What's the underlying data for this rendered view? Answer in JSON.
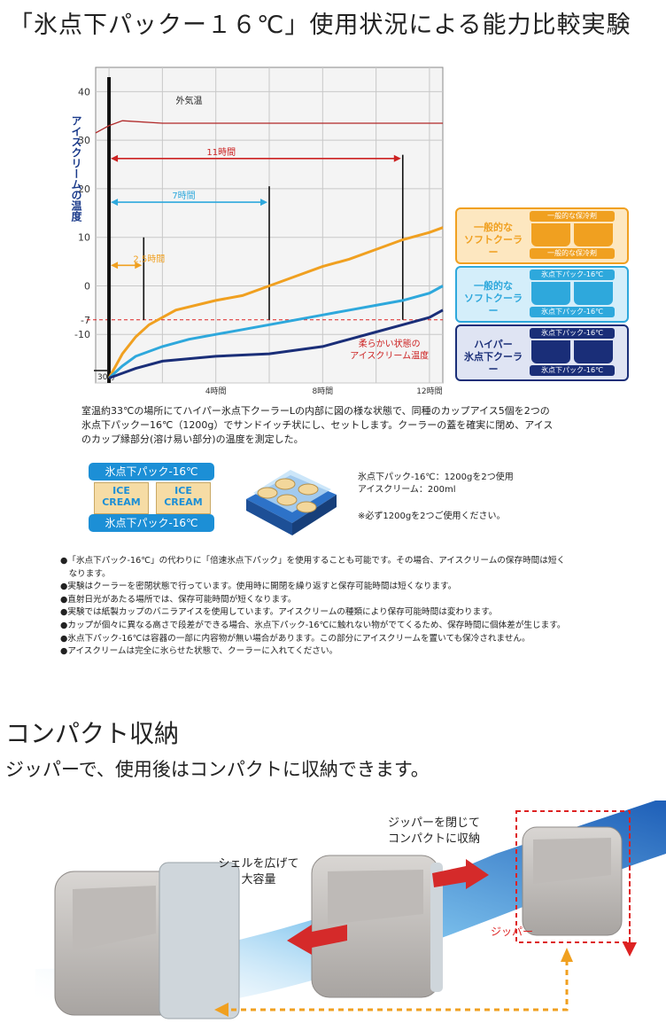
{
  "title": "「氷点下パックー１６℃」使用状況による能力比較実験",
  "chart_data": {
    "type": "line",
    "title": "",
    "ylabel": "アイスクリームの温度",
    "ylim": [
      -20,
      45
    ],
    "xlim": [
      -0.5,
      12.5
    ],
    "yticks": [
      40,
      30,
      20,
      10,
      0,
      -7,
      -10
    ],
    "ytick_labels": [
      "40",
      "30",
      "20",
      "10",
      "0",
      "-7",
      "-10"
    ],
    "xticks": [
      4,
      8,
      12
    ],
    "xtick_labels": [
      "4時間",
      "8時間",
      "12時間"
    ],
    "start_label": "30分",
    "grid": true,
    "series": [
      {
        "name": "外気温",
        "color": "#b02828",
        "x": [
          -0.5,
          0,
          0.5,
          2,
          4,
          8,
          12.5
        ],
        "y": [
          31.5,
          33,
          34,
          33.5,
          33.5,
          33.5,
          33.5
        ]
      },
      {
        "name": "一般的なソフトクーラー + 一般的な保冷剤",
        "color": "#f0a020",
        "x": [
          0,
          0.5,
          1,
          1.5,
          2.5,
          4,
          5,
          6,
          7,
          8,
          9,
          10,
          11,
          12,
          12.5
        ],
        "y": [
          -19,
          -14,
          -10.5,
          -8,
          -5,
          -3,
          -2,
          0,
          2,
          4,
          5.5,
          7.5,
          9.5,
          11,
          12
        ]
      },
      {
        "name": "一般的なソフトクーラー + 氷点下パック-16℃",
        "color": "#2ea8dc",
        "x": [
          0,
          0.5,
          1,
          2,
          3,
          4,
          5,
          6,
          7,
          8,
          9,
          10,
          11,
          12,
          12.5
        ],
        "y": [
          -19,
          -16.5,
          -14.5,
          -12.5,
          -11,
          -10,
          -9,
          -8,
          -7,
          -6,
          -5,
          -4,
          -3,
          -1.5,
          0
        ]
      },
      {
        "name": "ハイパー氷点下クーラー + 氷点下パック-16℃",
        "color": "#1a2e78",
        "x": [
          0,
          0.5,
          1,
          2,
          4,
          6,
          8,
          9,
          10,
          11,
          12,
          12.5
        ],
        "y": [
          -19,
          -18,
          -17,
          -15.5,
          -14.5,
          -14,
          -12.5,
          -11,
          -9.5,
          -8,
          -6.5,
          -5
        ]
      }
    ],
    "annotations": [
      {
        "text": "外気温",
        "x": 3,
        "y": 37.5
      },
      {
        "text": "11時間",
        "x": 4.2,
        "y": 25.5,
        "from": 0,
        "to": 11,
        "color": "#cc2222"
      },
      {
        "text": "7時間",
        "x": 2.8,
        "y": 16.5,
        "from": 0,
        "to": 6,
        "color": "#2ea8dc"
      },
      {
        "text": "2.5時間",
        "x": 1.5,
        "y": 3.5,
        "from": 0,
        "to": 1.3,
        "color": "#f0a020"
      },
      {
        "text": "柔らかい状態の",
        "x": 10.5,
        "y": -12.5,
        "color": "#cc2222"
      },
      {
        "text": "アイスクリーム温度",
        "x": 10.5,
        "y": -15,
        "color": "#cc2222"
      }
    ],
    "threshold_y": -7,
    "markers": [
      {
        "x": 0,
        "y_top": 43
      },
      {
        "x": 1.3,
        "y_top": 10
      },
      {
        "x": 6,
        "y_top": 20.5
      },
      {
        "x": 11,
        "y_top": 27
      }
    ]
  },
  "legend": [
    {
      "label": "一般的な\nソフトクーラー",
      "pill": "一般的な保冷剤",
      "color": "#f0a020",
      "bg": "#fde7c0"
    },
    {
      "label": "一般的な\nソフトクーラー",
      "pill": "氷点下パック-16℃",
      "color": "#2ea8dc",
      "bg": "#d4eefa"
    },
    {
      "label": "ハイパー\n氷点下クーラー",
      "pill": "氷点下パック-16℃",
      "color": "#1a2e78",
      "bg": "#dfe4f3"
    }
  ],
  "caption": [
    "室温約33℃の場所にてハイパー氷点下クーラーLの内部に図の様な状態で、同種のカップアイス5個を2つの",
    "氷点下パックー16℃（1200g）でサンドイッチ状にし、セットします。クーラーの蓋を確実に閉め、アイス",
    "のカップ縁部分(溶け易い部分)の温度を測定した。"
  ],
  "diagram": {
    "pack_label": "氷点下パック-16℃",
    "cup_label": "ICE CREAM"
  },
  "specs": [
    "氷点下パック-16℃：1200gを2つ使用",
    "アイスクリーム：200ml",
    "※必ず1200gを2つご使用ください。"
  ],
  "notes": [
    "●「氷点下パック-16℃」の代わりに「倍速氷点下パック」を使用することも可能です。その場合、アイスクリームの保存時間は短く",
    "　なります。",
    "●実験はクーラーを密閉状態で行っています。使用時に開閉を繰り返すと保存可能時間は短くなります。",
    "●直射日光があたる場所では、保存可能時間が短くなります。",
    "●実験では紙製カップのバニラアイスを使用しています。アイスクリームの種類により保存可能時間は変わります。",
    "●カップが個々に異なる高さで段差ができる場合、氷点下パック-16℃に触れない物がでてくるため、保存時間に個体差が生じます。",
    "●氷点下パック-16℃は容器の一部に内容物が無い場合があります。この部分にアイスクリームを置いても保冷されません。",
    "●アイスクリームは完全に氷らせた状態で、クーラーに入れてください。"
  ],
  "section": {
    "heading": "コンパクト収納",
    "subheading": "ジッパーで、使用後はコンパクトに収納できます。"
  },
  "photo_labels": {
    "expand": "シェルを広げて\n大容量",
    "compact": "ジッパーを閉じて\nコンパクトに収納",
    "zipper": "ジッパー"
  }
}
